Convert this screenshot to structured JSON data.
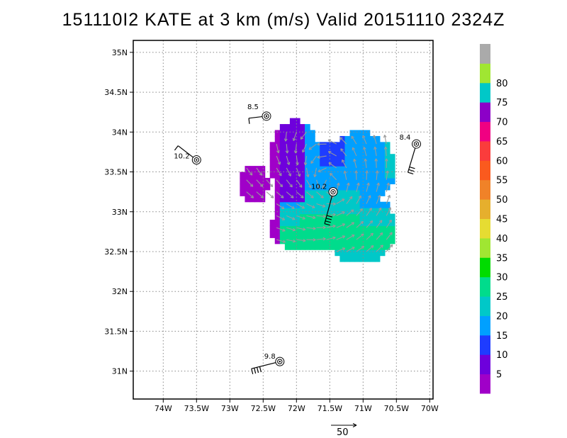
{
  "title": "151110I2 KATE at 3 km (m/s) Valid 20151110 2324Z",
  "chart_data": {
    "type": "heatmap",
    "title": "151110I2 KATE at 3 km (m/s) Valid 20151110 2324Z",
    "lon_range": [
      -74.45,
      -69.95
    ],
    "lat_range": [
      30.65,
      35.15
    ],
    "x_ticks": [
      {
        "value": -74.0,
        "label": "74W"
      },
      {
        "value": -73.5,
        "label": "73.5W"
      },
      {
        "value": -73.0,
        "label": "73W"
      },
      {
        "value": -72.5,
        "label": "72.5W"
      },
      {
        "value": -72.0,
        "label": "72W"
      },
      {
        "value": -71.5,
        "label": "71.5W"
      },
      {
        "value": -71.0,
        "label": "71W"
      },
      {
        "value": -70.5,
        "label": "70.5W"
      },
      {
        "value": -70.0,
        "label": "70W"
      }
    ],
    "y_ticks": [
      {
        "value": 31.0,
        "label": "31N"
      },
      {
        "value": 31.5,
        "label": "31.5N"
      },
      {
        "value": 32.0,
        "label": "32N"
      },
      {
        "value": 32.5,
        "label": "32.5N"
      },
      {
        "value": 33.0,
        "label": "33N"
      },
      {
        "value": 33.5,
        "label": "33.5N"
      },
      {
        "value": 34.0,
        "label": "34N"
      },
      {
        "value": 34.5,
        "label": "34.5N"
      },
      {
        "value": 35.0,
        "label": "35N"
      }
    ],
    "grid": true,
    "colorbar": {
      "bounds": [
        0,
        5,
        10,
        15,
        20,
        25,
        30,
        35,
        40,
        45,
        50,
        55,
        60,
        65,
        70,
        75,
        80,
        85
      ],
      "labels": [
        "5",
        "10",
        "15",
        "20",
        "25",
        "30",
        "35",
        "40",
        "45",
        "50",
        "55",
        "60",
        "65",
        "70",
        "75",
        "80"
      ],
      "colors": [
        "#a000c8",
        "#6e00dc",
        "#1e3cff",
        "#00a0ff",
        "#00c8c8",
        "#00dc8c",
        "#00dc00",
        "#a0e632",
        "#e6dc32",
        "#e6af2d",
        "#f08228",
        "#fa5a1e",
        "#fa3c3c",
        "#f00082",
        "#8c00c8",
        "#00c8c8",
        "#a0e632",
        "#aaaaaa"
      ]
    },
    "storm_center": {
      "lon": -71.45,
      "lat": 33.25
    },
    "observations": [
      {
        "label": "8.5",
        "lon": -72.45,
        "lat": 34.2
      },
      {
        "label": "8.4",
        "lon": -70.2,
        "lat": 33.85
      },
      {
        "label": "10.2",
        "lon": -73.5,
        "lat": 33.65
      },
      {
        "label": "10.2",
        "lon": -71.45,
        "lat": 33.25
      },
      {
        "label": "9.8",
        "lon": -72.25,
        "lat": 31.12
      }
    ],
    "reference_vector": {
      "label": "50",
      "magnitude": 50
    }
  }
}
